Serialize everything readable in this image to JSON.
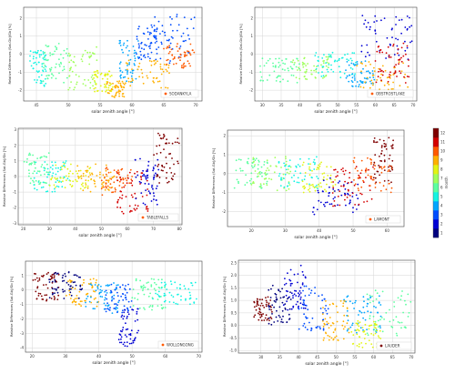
{
  "colorbar": {
    "label": "month",
    "ticks": [
      1,
      2,
      3,
      4,
      5,
      6,
      7,
      8,
      9,
      10,
      11,
      12
    ],
    "colormap": [
      "#00007f",
      "#0000d4",
      "#004dff",
      "#00a6ff",
      "#14f4e2",
      "#5cffa0",
      "#a0ff5c",
      "#e2f414",
      "#ffb000",
      "#ff5a00",
      "#d40000",
      "#7f0000"
    ]
  },
  "chart_data": [
    {
      "type": "scatter",
      "xlabel": "solar zenith angle [°]",
      "ylabel": "Relative Differences (Sat-Gb)/Gb [%]",
      "xlim": [
        43,
        71
      ],
      "ylim": [
        -2.6,
        2.6
      ],
      "xticks": [
        45,
        50,
        55,
        60,
        65,
        70
      ],
      "yticks": [
        -2,
        -1,
        0,
        1,
        2
      ],
      "grid": true,
      "legend": {
        "label": "SODANKYLA",
        "color": "#ff5a00",
        "position": "bottom-right"
      },
      "clusters": [
        {
          "x": [
            44,
            46.5
          ],
          "y": [
            -1.8,
            0.2
          ],
          "month": 5
        },
        {
          "x": [
            46,
            50
          ],
          "y": [
            -1.6,
            0.6
          ],
          "month": 6
        },
        {
          "x": [
            50,
            54.5
          ],
          "y": [
            -2.0,
            0.4
          ],
          "month": 7
        },
        {
          "x": [
            54,
            57
          ],
          "y": [
            -2.1,
            -0.9
          ],
          "month": 8
        },
        {
          "x": [
            56,
            59
          ],
          "y": [
            -2.4,
            -1.5
          ],
          "month": 9
        },
        {
          "x": [
            58,
            61
          ],
          "y": [
            -1.6,
            0.8
          ],
          "month": 4
        },
        {
          "x": [
            60.5,
            64
          ],
          "y": [
            -0.3,
            1.6
          ],
          "month": 3
        },
        {
          "x": [
            63,
            70
          ],
          "y": [
            -0.5,
            2.2
          ],
          "month": 3
        },
        {
          "x": [
            59,
            66
          ],
          "y": [
            -1.9,
            -0.3
          ],
          "month": 9
        },
        {
          "x": [
            65,
            70
          ],
          "y": [
            -0.8,
            0.6
          ],
          "month": 10
        }
      ]
    },
    {
      "type": "scatter",
      "xlabel": "solar zenith angle [°]",
      "ylabel": "Relative Differences (Sat-Gb)/Gb [%]",
      "xlim": [
        28,
        71
      ],
      "ylim": [
        -2.6,
        2.6
      ],
      "xticks": [
        30,
        35,
        40,
        45,
        50,
        55,
        60,
        65,
        70
      ],
      "yticks": [
        -2,
        -1,
        0,
        1,
        2
      ],
      "grid": true,
      "legend": {
        "label": "OBSTROSTLAKE",
        "color": "#ff5a00",
        "position": "bottom-right"
      },
      "clusters": [
        {
          "x": [
            29,
            40
          ],
          "y": [
            -1.6,
            -0.2
          ],
          "month": 6
        },
        {
          "x": [
            38,
            48
          ],
          "y": [
            -1.4,
            -0.1
          ],
          "month": 7
        },
        {
          "x": [
            44,
            55
          ],
          "y": [
            -1.3,
            0.1
          ],
          "month": 5
        },
        {
          "x": [
            52,
            60
          ],
          "y": [
            -1.8,
            -0.3
          ],
          "month": 4
        },
        {
          "x": [
            56,
            70
          ],
          "y": [
            -0.4,
            2.2
          ],
          "month": 2
        },
        {
          "x": [
            55,
            69
          ],
          "y": [
            -2.2,
            -0.4
          ],
          "month": 9
        },
        {
          "x": [
            60,
            69
          ],
          "y": [
            -1.6,
            0.6
          ],
          "month": 11
        }
      ]
    },
    {
      "type": "scatter",
      "xlabel": "solar zenith angle [°]",
      "ylabel": "Relative Differences (Sat-Gb)/Gb [%]",
      "xlim": [
        18,
        81
      ],
      "ylim": [
        -3.1,
        3.1
      ],
      "xticks": [
        20,
        30,
        40,
        50,
        60,
        70,
        80
      ],
      "yticks": [
        -3,
        -2,
        -1,
        0,
        1,
        2,
        3
      ],
      "grid": true,
      "legend": {
        "label": "TABLEFALLS",
        "color": "#ff5a00",
        "position": "bottom-right"
      },
      "clusters": [
        {
          "x": [
            20,
            30
          ],
          "y": [
            -0.6,
            1.6
          ],
          "month": 6
        },
        {
          "x": [
            24,
            38
          ],
          "y": [
            -1.0,
            1.0
          ],
          "month": 5
        },
        {
          "x": [
            30,
            46
          ],
          "y": [
            -0.8,
            0.9
          ],
          "month": 8
        },
        {
          "x": [
            40,
            55
          ],
          "y": [
            -1.0,
            0.8
          ],
          "month": 9
        },
        {
          "x": [
            50,
            62
          ],
          "y": [
            -1.2,
            0.6
          ],
          "month": 10
        },
        {
          "x": [
            56,
            68
          ],
          "y": [
            -2.4,
            0.4
          ],
          "month": 11
        },
        {
          "x": [
            63,
            72
          ],
          "y": [
            -1.8,
            1.2
          ],
          "month": 2
        },
        {
          "x": [
            70,
            80
          ],
          "y": [
            -0.5,
            2.9
          ],
          "month": 12
        }
      ]
    },
    {
      "type": "scatter",
      "xlabel": "solar zenith angle [°]",
      "ylabel": "Relative Differences (Sat-Gb)/Gb [%]",
      "xlim": [
        13,
        65
      ],
      "ylim": [
        -2.8,
        2.3
      ],
      "xticks": [
        20,
        30,
        40,
        50,
        60
      ],
      "yticks": [
        -2,
        -1,
        0,
        1,
        2
      ],
      "grid": true,
      "legend": {
        "label": "LAMONT",
        "color": "#ff5a00",
        "position": "bottom-right"
      },
      "clusters": [
        {
          "x": [
            15,
            25
          ],
          "y": [
            -0.8,
            0.8
          ],
          "month": 6
        },
        {
          "x": [
            20,
            32
          ],
          "y": [
            -0.9,
            0.9
          ],
          "month": 7
        },
        {
          "x": [
            28,
            40
          ],
          "y": [
            -0.8,
            0.9
          ],
          "month": 5
        },
        {
          "x": [
            35,
            45
          ],
          "y": [
            -1.0,
            0.6
          ],
          "month": 8
        },
        {
          "x": [
            38,
            52
          ],
          "y": [
            -2.2,
            -0.2
          ],
          "month": 2
        },
        {
          "x": [
            44,
            56
          ],
          "y": [
            -1.8,
            0.4
          ],
          "month": 11
        },
        {
          "x": [
            50,
            62
          ],
          "y": [
            -1.0,
            0.9
          ],
          "month": 10
        },
        {
          "x": [
            56,
            62
          ],
          "y": [
            -0.5,
            1.9
          ],
          "month": 12
        }
      ]
    },
    {
      "type": "scatter",
      "xlabel": "solar zenith angle [°]",
      "ylabel": "Relative Differences (Sat-Gb)/Gb [%]",
      "xlim": [
        18,
        71
      ],
      "ylim": [
        -4.3,
        2.0
      ],
      "xticks": [
        20,
        30,
        40,
        50,
        60,
        70
      ],
      "yticks": [
        -4,
        -3,
        -2,
        -1,
        0,
        1
      ],
      "grid": true,
      "legend": {
        "label": "WOLLONGONG",
        "color": "#ff5a00",
        "position": "bottom-right"
      },
      "clusters": [
        {
          "x": [
            20,
            28
          ],
          "y": [
            -0.8,
            1.2
          ],
          "month": 12
        },
        {
          "x": [
            25,
            35
          ],
          "y": [
            -0.6,
            1.4
          ],
          "month": 1
        },
        {
          "x": [
            30,
            40
          ],
          "y": [
            -1.2,
            0.8
          ],
          "month": 9
        },
        {
          "x": [
            36,
            46
          ],
          "y": [
            -1.6,
            0.6
          ],
          "month": 4
        },
        {
          "x": [
            42,
            50
          ],
          "y": [
            -1.6,
            0.4
          ],
          "month": 3
        },
        {
          "x": [
            46,
            52
          ],
          "y": [
            -4.0,
            -1.2
          ],
          "month": 2
        },
        {
          "x": [
            50,
            60
          ],
          "y": [
            -1.4,
            0.8
          ],
          "month": 6
        },
        {
          "x": [
            56,
            70
          ],
          "y": [
            -1.0,
            0.6
          ],
          "month": 5
        }
      ]
    },
    {
      "type": "scatter",
      "xlabel": "solar zenith angle [°]",
      "ylabel": "Relative Differences (Sat-Gb)/Gb [%]",
      "xlim": [
        24,
        71
      ],
      "ylim": [
        -1.1,
        2.6
      ],
      "xticks": [
        30,
        35,
        40,
        45,
        50,
        55,
        60,
        65,
        70
      ],
      "yticks": [
        -1.0,
        -0.5,
        0.0,
        0.5,
        1.0,
        1.5,
        2.0,
        2.5
      ],
      "grid": true,
      "legend": {
        "label": "LAUDER",
        "color": "#7f0000",
        "position": "bottom-right"
      },
      "clusters": [
        {
          "x": [
            28,
            33
          ],
          "y": [
            0.2,
            1.2
          ],
          "month": 12
        },
        {
          "x": [
            32,
            38
          ],
          "y": [
            0.0,
            1.6
          ],
          "month": 1
        },
        {
          "x": [
            36,
            42
          ],
          "y": [
            0.6,
            2.4
          ],
          "month": 2
        },
        {
          "x": [
            40,
            48
          ],
          "y": [
            -0.2,
            1.6
          ],
          "month": 3
        },
        {
          "x": [
            46,
            54
          ],
          "y": [
            -0.6,
            1.0
          ],
          "month": 9
        },
        {
          "x": [
            52,
            62
          ],
          "y": [
            -0.3,
            1.2
          ],
          "month": 4
        },
        {
          "x": [
            58,
            70
          ],
          "y": [
            -0.4,
            1.4
          ],
          "month": 6
        },
        {
          "x": [
            54,
            62
          ],
          "y": [
            -0.9,
            0.2
          ],
          "month": 8
        }
      ]
    }
  ]
}
